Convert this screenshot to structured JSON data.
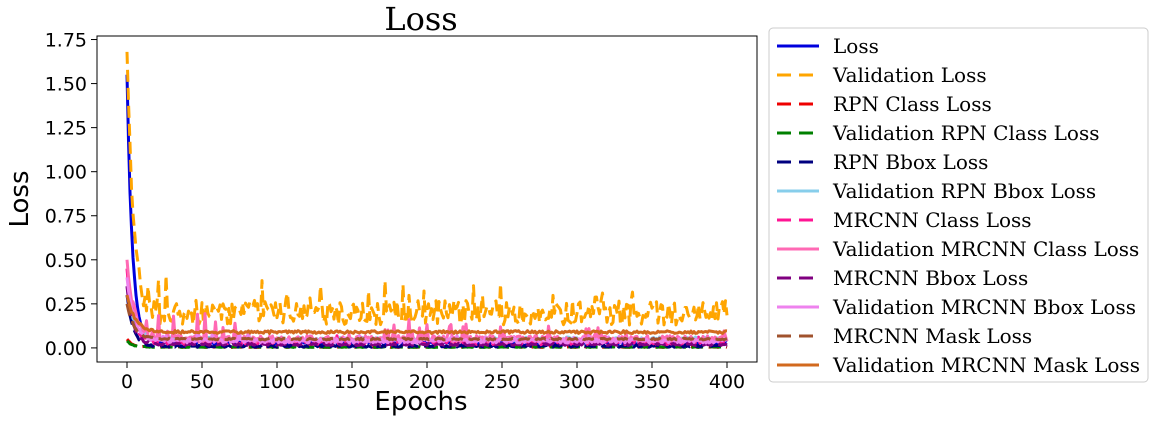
{
  "chart_data": {
    "type": "line",
    "title": "Loss",
    "xlabel": "Epochs",
    "ylabel": "Loss",
    "xlim": [
      -20,
      420
    ],
    "ylim": [
      -0.08,
      1.77
    ],
    "xticks": [
      0,
      50,
      100,
      150,
      200,
      250,
      300,
      350,
      400
    ],
    "yticks": [
      0.0,
      0.25,
      0.5,
      0.75,
      1.0,
      1.25,
      1.5,
      1.75
    ],
    "ytick_labels": [
      "0.00",
      "0.25",
      "0.50",
      "0.75",
      "1.00",
      "1.25",
      "1.50",
      "1.75"
    ],
    "grid": false,
    "legend_placement": "outside-right",
    "epochs": 400,
    "series": [
      {
        "name": "Loss",
        "color": "#0000dd",
        "dash": "solid",
        "start": 1.55,
        "plateau": 0.03,
        "decay": 10,
        "noise": 0.01,
        "spikes": 0
      },
      {
        "name": "Validation Loss",
        "color": "#ffa500",
        "dash": "dashed",
        "start": 1.68,
        "plateau": 0.2,
        "decay": 12,
        "noise": 0.07,
        "spikes": 0.22
      },
      {
        "name": "RPN Class Loss",
        "color": "#ee0000",
        "dash": "dashed",
        "start": 0.05,
        "plateau": 0.005,
        "decay": 10,
        "noise": 0.002,
        "spikes": 0
      },
      {
        "name": "Validation RPN Class Loss",
        "color": "#008000",
        "dash": "dashed",
        "start": 0.04,
        "plateau": 0.005,
        "decay": 10,
        "noise": 0.002,
        "spikes": 0
      },
      {
        "name": "RPN Bbox Loss",
        "color": "#00007f",
        "dash": "dashed",
        "start": 0.3,
        "plateau": 0.01,
        "decay": 12,
        "noise": 0.006,
        "spikes": 0
      },
      {
        "name": "Validation RPN Bbox Loss",
        "color": "#87ceeb",
        "dash": "solid",
        "start": 0.35,
        "plateau": 0.05,
        "decay": 15,
        "noise": 0.012,
        "spikes": 0
      },
      {
        "name": "MRCNN Class Loss",
        "color": "#ff1493",
        "dash": "dashed",
        "start": 0.45,
        "plateau": 0.03,
        "decay": 12,
        "noise": 0.012,
        "spikes": 0.06
      },
      {
        "name": "Validation MRCNN Class Loss",
        "color": "#ff69b4",
        "dash": "solid",
        "start": 0.5,
        "plateau": 0.05,
        "decay": 15,
        "noise": 0.02,
        "spikes": 0.18
      },
      {
        "name": "MRCNN Bbox Loss",
        "color": "#800080",
        "dash": "dashed",
        "start": 0.35,
        "plateau": 0.02,
        "decay": 12,
        "noise": 0.006,
        "spikes": 0
      },
      {
        "name": "Validation MRCNN Bbox Loss",
        "color": "#ee82ee",
        "dash": "solid",
        "start": 0.4,
        "plateau": 0.04,
        "decay": 14,
        "noise": 0.012,
        "spikes": 0.05
      },
      {
        "name": "MRCNN Mask Loss",
        "color": "#a0522d",
        "dash": "dashed",
        "start": 0.25,
        "plateau": 0.05,
        "decay": 15,
        "noise": 0.005,
        "spikes": 0
      },
      {
        "name": "Validation MRCNN Mask Loss",
        "color": "#d2691e",
        "dash": "solid",
        "start": 0.3,
        "plateau": 0.09,
        "decay": 18,
        "noise": 0.008,
        "spikes": 0
      }
    ]
  }
}
